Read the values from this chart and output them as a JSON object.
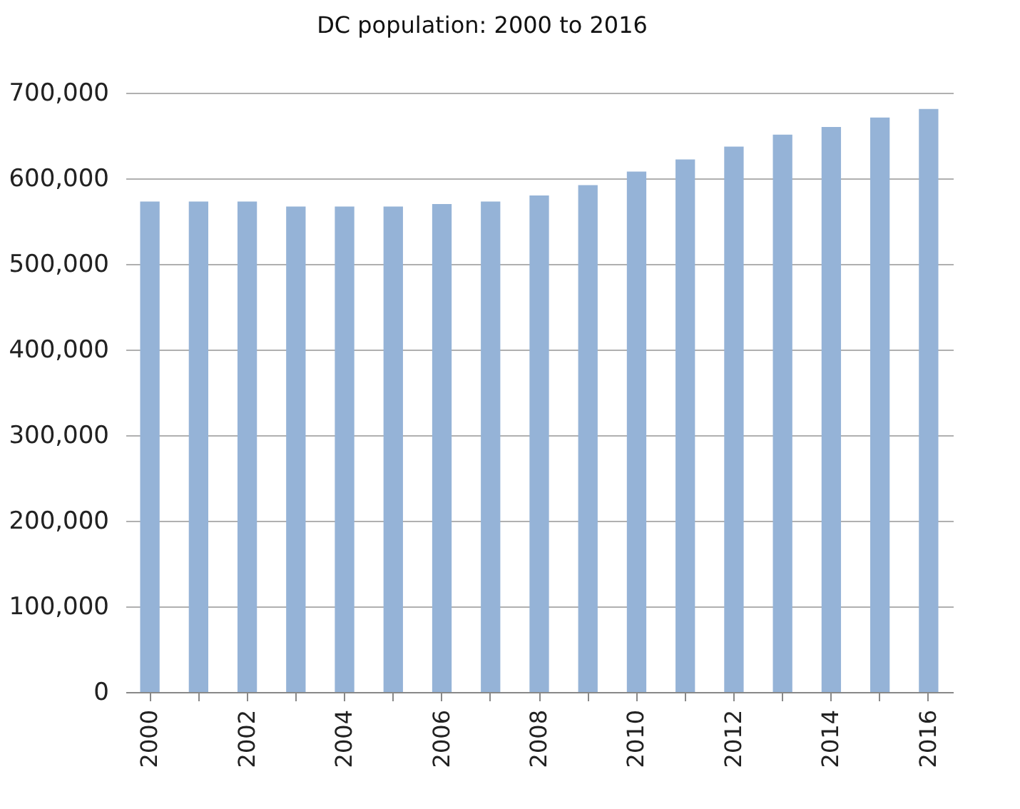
{
  "chart_data": {
    "type": "bar",
    "title": "DC population: 2000 to 2016",
    "categories": [
      "2000",
      null,
      "2002",
      null,
      "2004",
      null,
      "2006",
      null,
      "2008",
      null,
      "2010",
      null,
      "2012",
      null,
      "2014",
      null,
      "2016"
    ],
    "values": [
      573000,
      573000,
      573000,
      567000,
      567000,
      567000,
      570000,
      573000,
      580000,
      592000,
      608000,
      622000,
      637000,
      651000,
      660000,
      671000,
      681000
    ],
    "color": "#95b3d7",
    "ylim": [
      0,
      700000
    ],
    "yticks": [
      0,
      {
        "value": 100000,
        "label": "100,000"
      },
      {
        "value": 200000,
        "label": "200,000"
      },
      {
        "value": 300000,
        "label": "300,000"
      },
      {
        "value": 400000,
        "label": "400,000"
      },
      {
        "value": 500000,
        "label": "500,000"
      },
      {
        "value": 600000,
        "label": "600,000"
      },
      {
        "value": 700000,
        "label": "700,000"
      }
    ],
    "grid": "y"
  }
}
